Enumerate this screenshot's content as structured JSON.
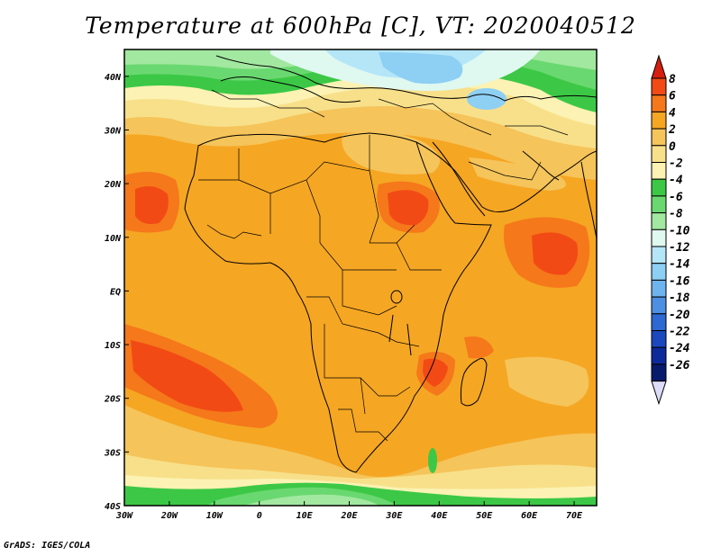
{
  "title": "Temperature at 600hPa [C], VT: 2020040512",
  "footer": "GrADS: IGES/COLA",
  "map": {
    "lon_range": [
      -30,
      75
    ],
    "lat_range": [
      -40,
      45
    ],
    "lat_ticks": [
      {
        "value": 40,
        "label": "40N"
      },
      {
        "value": 30,
        "label": "30N"
      },
      {
        "value": 20,
        "label": "20N"
      },
      {
        "value": 10,
        "label": "10N"
      },
      {
        "value": 0,
        "label": "EQ"
      },
      {
        "value": -10,
        "label": "10S"
      },
      {
        "value": -20,
        "label": "20S"
      },
      {
        "value": -30,
        "label": "30S"
      },
      {
        "value": -40,
        "label": "40S"
      }
    ],
    "lon_ticks": [
      {
        "value": -30,
        "label": "30W"
      },
      {
        "value": -20,
        "label": "20W"
      },
      {
        "value": -10,
        "label": "10W"
      },
      {
        "value": 0,
        "label": "0"
      },
      {
        "value": 10,
        "label": "10E"
      },
      {
        "value": 20,
        "label": "20E"
      },
      {
        "value": 30,
        "label": "30E"
      },
      {
        "value": 40,
        "label": "40E"
      },
      {
        "value": 50,
        "label": "50E"
      },
      {
        "value": 60,
        "label": "60E"
      },
      {
        "value": 70,
        "label": "70E"
      }
    ],
    "background_color": "#f5a623"
  },
  "colorbar": {
    "levels": [
      "8",
      "6",
      "4",
      "2",
      "0",
      "-2",
      "-4",
      "-6",
      "-8",
      "-10",
      "-12",
      "-14",
      "-16",
      "-18",
      "-20",
      "-22",
      "-24",
      "-26"
    ],
    "colors": [
      "#d51e10",
      "#f24a15",
      "#f5781a",
      "#f5a623",
      "#f5c45a",
      "#f8e08a",
      "#fbf2b3",
      "#3cc846",
      "#6ad870",
      "#a2e8a0",
      "#dff8f0",
      "#b4e6f8",
      "#8ecff4",
      "#6eb4ee",
      "#4d8fe2",
      "#2e68d2",
      "#1b48be",
      "#0e2a9a",
      "#081a6b",
      "#dcdcf8"
    ]
  }
}
